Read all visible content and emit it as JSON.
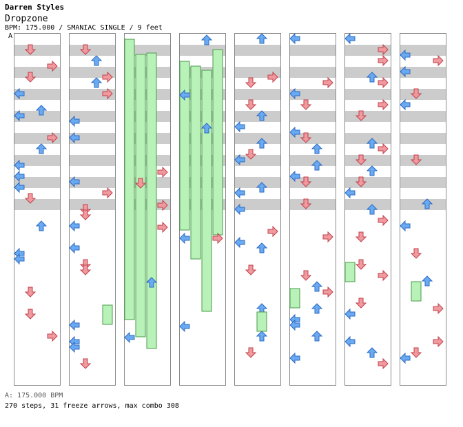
{
  "header": {
    "artist": "Darren Styles",
    "title": "Dropzone",
    "meta": "BPM: 175.000 / SMANIAC SINGLE / 9 feet",
    "marker": "A"
  },
  "footer": {
    "bpm_line": "A: 175.000 BPM",
    "stats_line": "270 steps, 31 freeze arrows, max combo 308"
  },
  "chart_info": {
    "bpm": 175.0,
    "difficulty": "SMANIAC",
    "style": "SINGLE",
    "feet": 9,
    "steps": 270,
    "freeze_arrows": 31,
    "max_combo": 308,
    "columns": 8,
    "measures_per_column": 4
  },
  "colors": {
    "left_arrow": "#6aaaf2",
    "down_arrow": "#f09aa0",
    "up_arrow": "#6aaaf2",
    "right_arrow": "#f09aa0",
    "freeze_body": "#b8f2b8",
    "freeze_border": "#4a9a4a",
    "band": "#cccccc",
    "border": "#888888"
  }
}
